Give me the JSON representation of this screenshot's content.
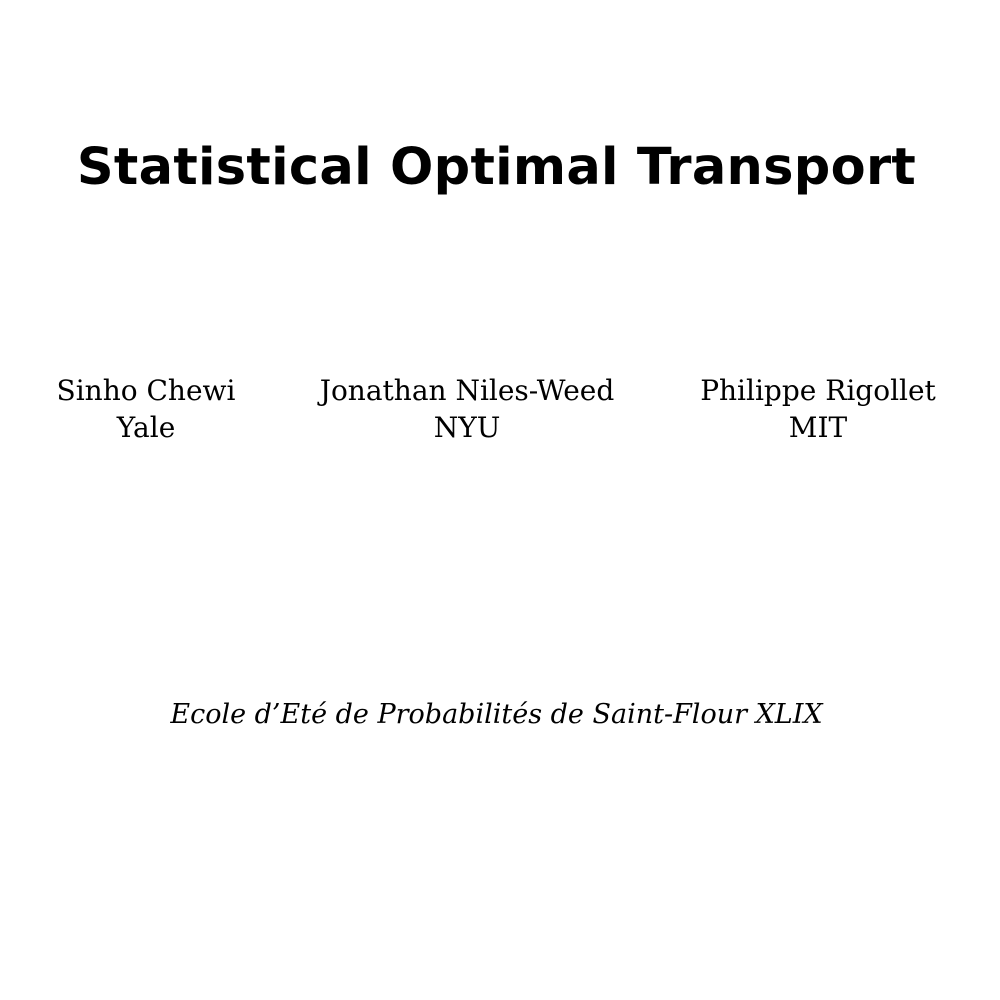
{
  "title": "Statistical Optimal Transport",
  "authors": [
    {
      "name": "Sinho Chewi",
      "affiliation": "Yale"
    },
    {
      "name": "Jonathan Niles-Weed",
      "affiliation": "NYU"
    },
    {
      "name": "Philippe Rigollet",
      "affiliation": "MIT"
    }
  ],
  "venue": "Ecole d’Eté de Probabilités de Saint-Flour XLIX"
}
